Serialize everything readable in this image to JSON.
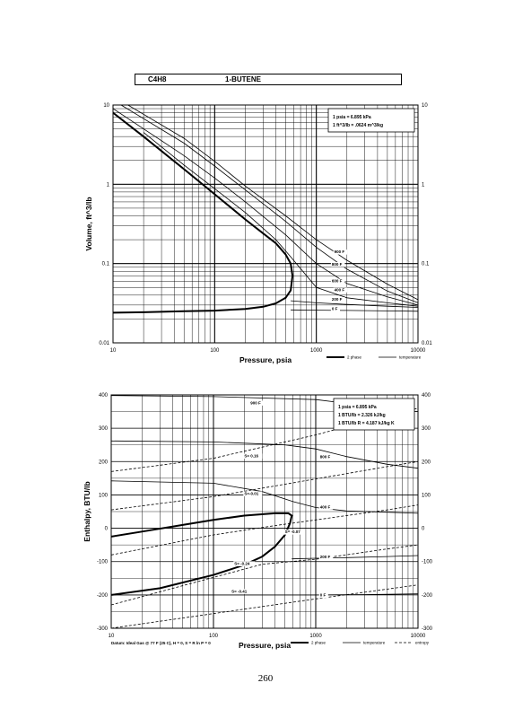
{
  "header": {
    "formula": "C4H8",
    "name": "1-BUTENE"
  },
  "page_number": "260",
  "chart_data": [
    {
      "type": "line",
      "ylabel": "Volume, ft^3/lb",
      "xlabel": "Pressure, psia",
      "x_scale": "log",
      "y_scale": "log",
      "xlim": [
        10,
        10000
      ],
      "ylim": [
        0.01,
        10
      ],
      "x_ticks": [
        "10",
        "100",
        "1000",
        "10000"
      ],
      "y_ticks": [
        "10",
        "1",
        "0.1",
        "0.01"
      ],
      "y_ticks_right": [
        "10",
        "1",
        "0.1",
        "0.01"
      ],
      "grid": true,
      "legend": {
        "position": "bottom-right",
        "entries": [
          "2 phase",
          "temperature"
        ]
      },
      "note": [
        "1 psia = 6.895 kPa",
        "1 ft^3/lb = .0624 m^3/kg"
      ],
      "series": [
        {
          "name": "2 phase",
          "points": [
            [
              10,
              0.024
            ],
            [
              20,
              0.0243
            ],
            [
              50,
              0.025
            ],
            [
              100,
              0.0255
            ],
            [
              200,
              0.0268
            ],
            [
              300,
              0.0285
            ],
            [
              400,
              0.0315
            ],
            [
              500,
              0.037
            ],
            [
              560,
              0.046
            ],
            [
              583,
              0.07
            ],
            [
              560,
              0.1
            ],
            [
              500,
              0.13
            ],
            [
              400,
              0.18
            ],
            [
              300,
              0.24
            ],
            [
              200,
              0.36
            ],
            [
              100,
              0.75
            ],
            [
              50,
              1.55
            ],
            [
              20,
              4.0
            ],
            [
              10,
              8.0
            ]
          ]
        },
        {
          "name": "900 F",
          "label": "900 F",
          "points": [
            [
              14,
              10
            ],
            [
              50,
              3.8
            ],
            [
              100,
              1.95
            ],
            [
              200,
              0.95
            ],
            [
              500,
              0.4
            ],
            [
              1000,
              0.2
            ],
            [
              2000,
              0.11
            ],
            [
              5000,
              0.055
            ],
            [
              10000,
              0.035
            ]
          ]
        },
        {
          "name": "800 F",
          "label": "800 F",
          "points": [
            [
              12,
              10
            ],
            [
              50,
              3.3
            ],
            [
              100,
              1.7
            ],
            [
              200,
              0.85
            ],
            [
              500,
              0.34
            ],
            [
              1000,
              0.16
            ],
            [
              2000,
              0.085
            ],
            [
              5000,
              0.045
            ],
            [
              10000,
              0.032
            ]
          ]
        },
        {
          "name": "600 F",
          "label": "600 F",
          "points": [
            [
              10,
              9
            ],
            [
              50,
              2.3
            ],
            [
              100,
              1.2
            ],
            [
              200,
              0.6
            ],
            [
              500,
              0.23
            ],
            [
              1000,
              0.1
            ],
            [
              2000,
              0.056
            ],
            [
              5000,
              0.038
            ],
            [
              10000,
              0.03
            ]
          ]
        },
        {
          "name": "400 F",
          "label": "400 F",
          "points": [
            [
              20,
              4.5
            ],
            [
              50,
              1.75
            ],
            [
              100,
              0.88
            ],
            [
              200,
              0.44
            ],
            [
              400,
              0.2
            ],
            [
              550,
              0.125
            ],
            [
              1000,
              0.05
            ],
            [
              2000,
              0.037
            ],
            [
              5000,
              0.032
            ],
            [
              10000,
              0.029
            ]
          ]
        },
        {
          "name": "200 F",
          "label": "200 F",
          "points": [
            [
              560,
              0.034
            ],
            [
              1000,
              0.032
            ],
            [
              2000,
              0.0305
            ],
            [
              5000,
              0.029
            ],
            [
              10000,
              0.028
            ]
          ]
        },
        {
          "name": "0 F",
          "label": "0 F",
          "points": [
            [
              560,
              0.026
            ],
            [
              1000,
              0.0258
            ],
            [
              2000,
              0.0256
            ],
            [
              5000,
              0.0253
            ],
            [
              10000,
              0.025
            ]
          ]
        }
      ],
      "curve_labels": [
        {
          "text": "900 F",
          "at": [
            1500,
            0.135
          ]
        },
        {
          "text": "800 F",
          "at": [
            1420,
            0.094
          ]
        },
        {
          "text": "600 F",
          "at": [
            1420,
            0.058
          ]
        },
        {
          "text": "400 F",
          "at": [
            1500,
            0.045
          ]
        },
        {
          "text": "200 F",
          "at": [
            1420,
            0.034
          ]
        },
        {
          "text": "0 F",
          "at": [
            1420,
            0.026
          ]
        }
      ]
    },
    {
      "type": "line",
      "ylabel": "Enthalpy, BTU/lb",
      "xlabel": "Pressure, psia",
      "x_scale": "log",
      "xlim": [
        10,
        10000
      ],
      "ylim": [
        -300,
        400
      ],
      "x_ticks": [
        "10",
        "100",
        "1000",
        "10000"
      ],
      "y_ticks": [
        "400",
        "300",
        "200",
        "100",
        "0",
        "-100",
        "-200",
        "-300"
      ],
      "y_ticks_right": [
        "400",
        "300",
        "200",
        "100",
        "0",
        "-100",
        "-200",
        "-300"
      ],
      "grid": true,
      "legend": {
        "position": "bottom-right",
        "entries": [
          "2 phase",
          "temperature",
          "entropy"
        ]
      },
      "note": [
        "1 psia = 6.895 kPa",
        "1 BTU/lb = 2.326 kJ/kg",
        "1 BTU/lb R = 4.187 kJ/kg K"
      ],
      "footnote": "Datum: Ideal Gas @ 77 F (25 C), H = 0, S = R ln P = 0",
      "series": [
        {
          "name": "2 phase",
          "points": [
            [
              10,
              -200
            ],
            [
              30,
              -180
            ],
            [
              100,
              -140
            ],
            [
              200,
              -110
            ],
            [
              300,
              -85
            ],
            [
              400,
              -55
            ],
            [
              500,
              -20
            ],
            [
              560,
              15
            ],
            [
              583,
              38
            ],
            [
              540,
              45
            ],
            [
              400,
              45
            ],
            [
              200,
              38
            ],
            [
              100,
              25
            ],
            [
              50,
              10
            ],
            [
              20,
              -10
            ],
            [
              10,
              -25
            ]
          ]
        },
        {
          "name": "900 F",
          "points": [
            [
              10,
              398
            ],
            [
              100,
              395
            ],
            [
              1000,
              386
            ],
            [
              3000,
              368
            ],
            [
              10000,
              350
            ]
          ]
        },
        {
          "name": "800 F",
          "points": [
            [
              10,
              262
            ],
            [
              100,
              259
            ],
            [
              500,
              250
            ],
            [
              1000,
              238
            ],
            [
              2000,
              215
            ],
            [
              5000,
              192
            ],
            [
              10000,
              180
            ]
          ]
        },
        {
          "name": "400 F",
          "points": [
            [
              10,
              142
            ],
            [
              100,
              135
            ],
            [
              300,
              110
            ],
            [
              600,
              80
            ],
            [
              1000,
              62
            ],
            [
              2000,
              52
            ],
            [
              5000,
              48
            ],
            [
              10000,
              45
            ]
          ]
        },
        {
          "name": "200 F",
          "points": [
            [
              583,
              -92
            ],
            [
              1000,
              -90
            ],
            [
              2000,
              -88
            ],
            [
              5000,
              -85
            ],
            [
              10000,
              -82
            ]
          ]
        },
        {
          "name": "0 F",
          "points": [
            [
              10,
              -200
            ],
            [
              1000,
              -200
            ],
            [
              3000,
              -199
            ],
            [
              10000,
              -197
            ]
          ]
        },
        {
          "name": "S=-0.41",
          "dashed": true,
          "points": [
            [
              10,
              -300
            ],
            [
              1000,
              -212
            ],
            [
              10000,
              -170
            ]
          ]
        },
        {
          "name": "S=-0.24",
          "dashed": true,
          "points": [
            [
              10,
              -230
            ],
            [
              300,
              -108
            ],
            [
              1000,
              -93
            ],
            [
              5000,
              -62
            ],
            [
              10000,
              -50
            ]
          ]
        },
        {
          "name": "S=-0.07",
          "dashed": true,
          "points": [
            [
              10,
              -80
            ],
            [
              100,
              -20
            ],
            [
              400,
              8
            ],
            [
              1000,
              25
            ],
            [
              5000,
              55
            ],
            [
              10000,
              70
            ]
          ]
        },
        {
          "name": "S=-0.01",
          "dashed": true,
          "points": [
            [
              10,
              55
            ],
            [
              100,
              95
            ],
            [
              1000,
              148
            ],
            [
              5000,
              185
            ],
            [
              10000,
              200
            ]
          ]
        },
        {
          "name": "S=0.16",
          "dashed": true,
          "points": [
            [
              10,
              170
            ],
            [
              100,
              210
            ],
            [
              1000,
              280
            ],
            [
              3000,
              320
            ],
            [
              10000,
              360
            ]
          ]
        }
      ],
      "curve_labels": [
        {
          "text": "900 F",
          "at": [
            230,
            372
          ]
        },
        {
          "text": "800 F",
          "at": [
            1100,
            210
          ]
        },
        {
          "text": "S= 0.16",
          "at": [
            200,
            213
          ]
        },
        {
          "text": "S=-0.01",
          "at": [
            200,
            100
          ]
        },
        {
          "text": "400 F",
          "at": [
            1100,
            60
          ]
        },
        {
          "text": "S= -0.07",
          "at": [
            500,
            -15
          ]
        },
        {
          "text": "S= -0.24",
          "at": [
            160,
            -110
          ]
        },
        {
          "text": "200 F",
          "at": [
            1100,
            -90
          ]
        },
        {
          "text": "S= -0.41",
          "at": [
            150,
            -193
          ]
        },
        {
          "text": "0 F",
          "at": [
            1100,
            -205
          ]
        }
      ]
    }
  ]
}
